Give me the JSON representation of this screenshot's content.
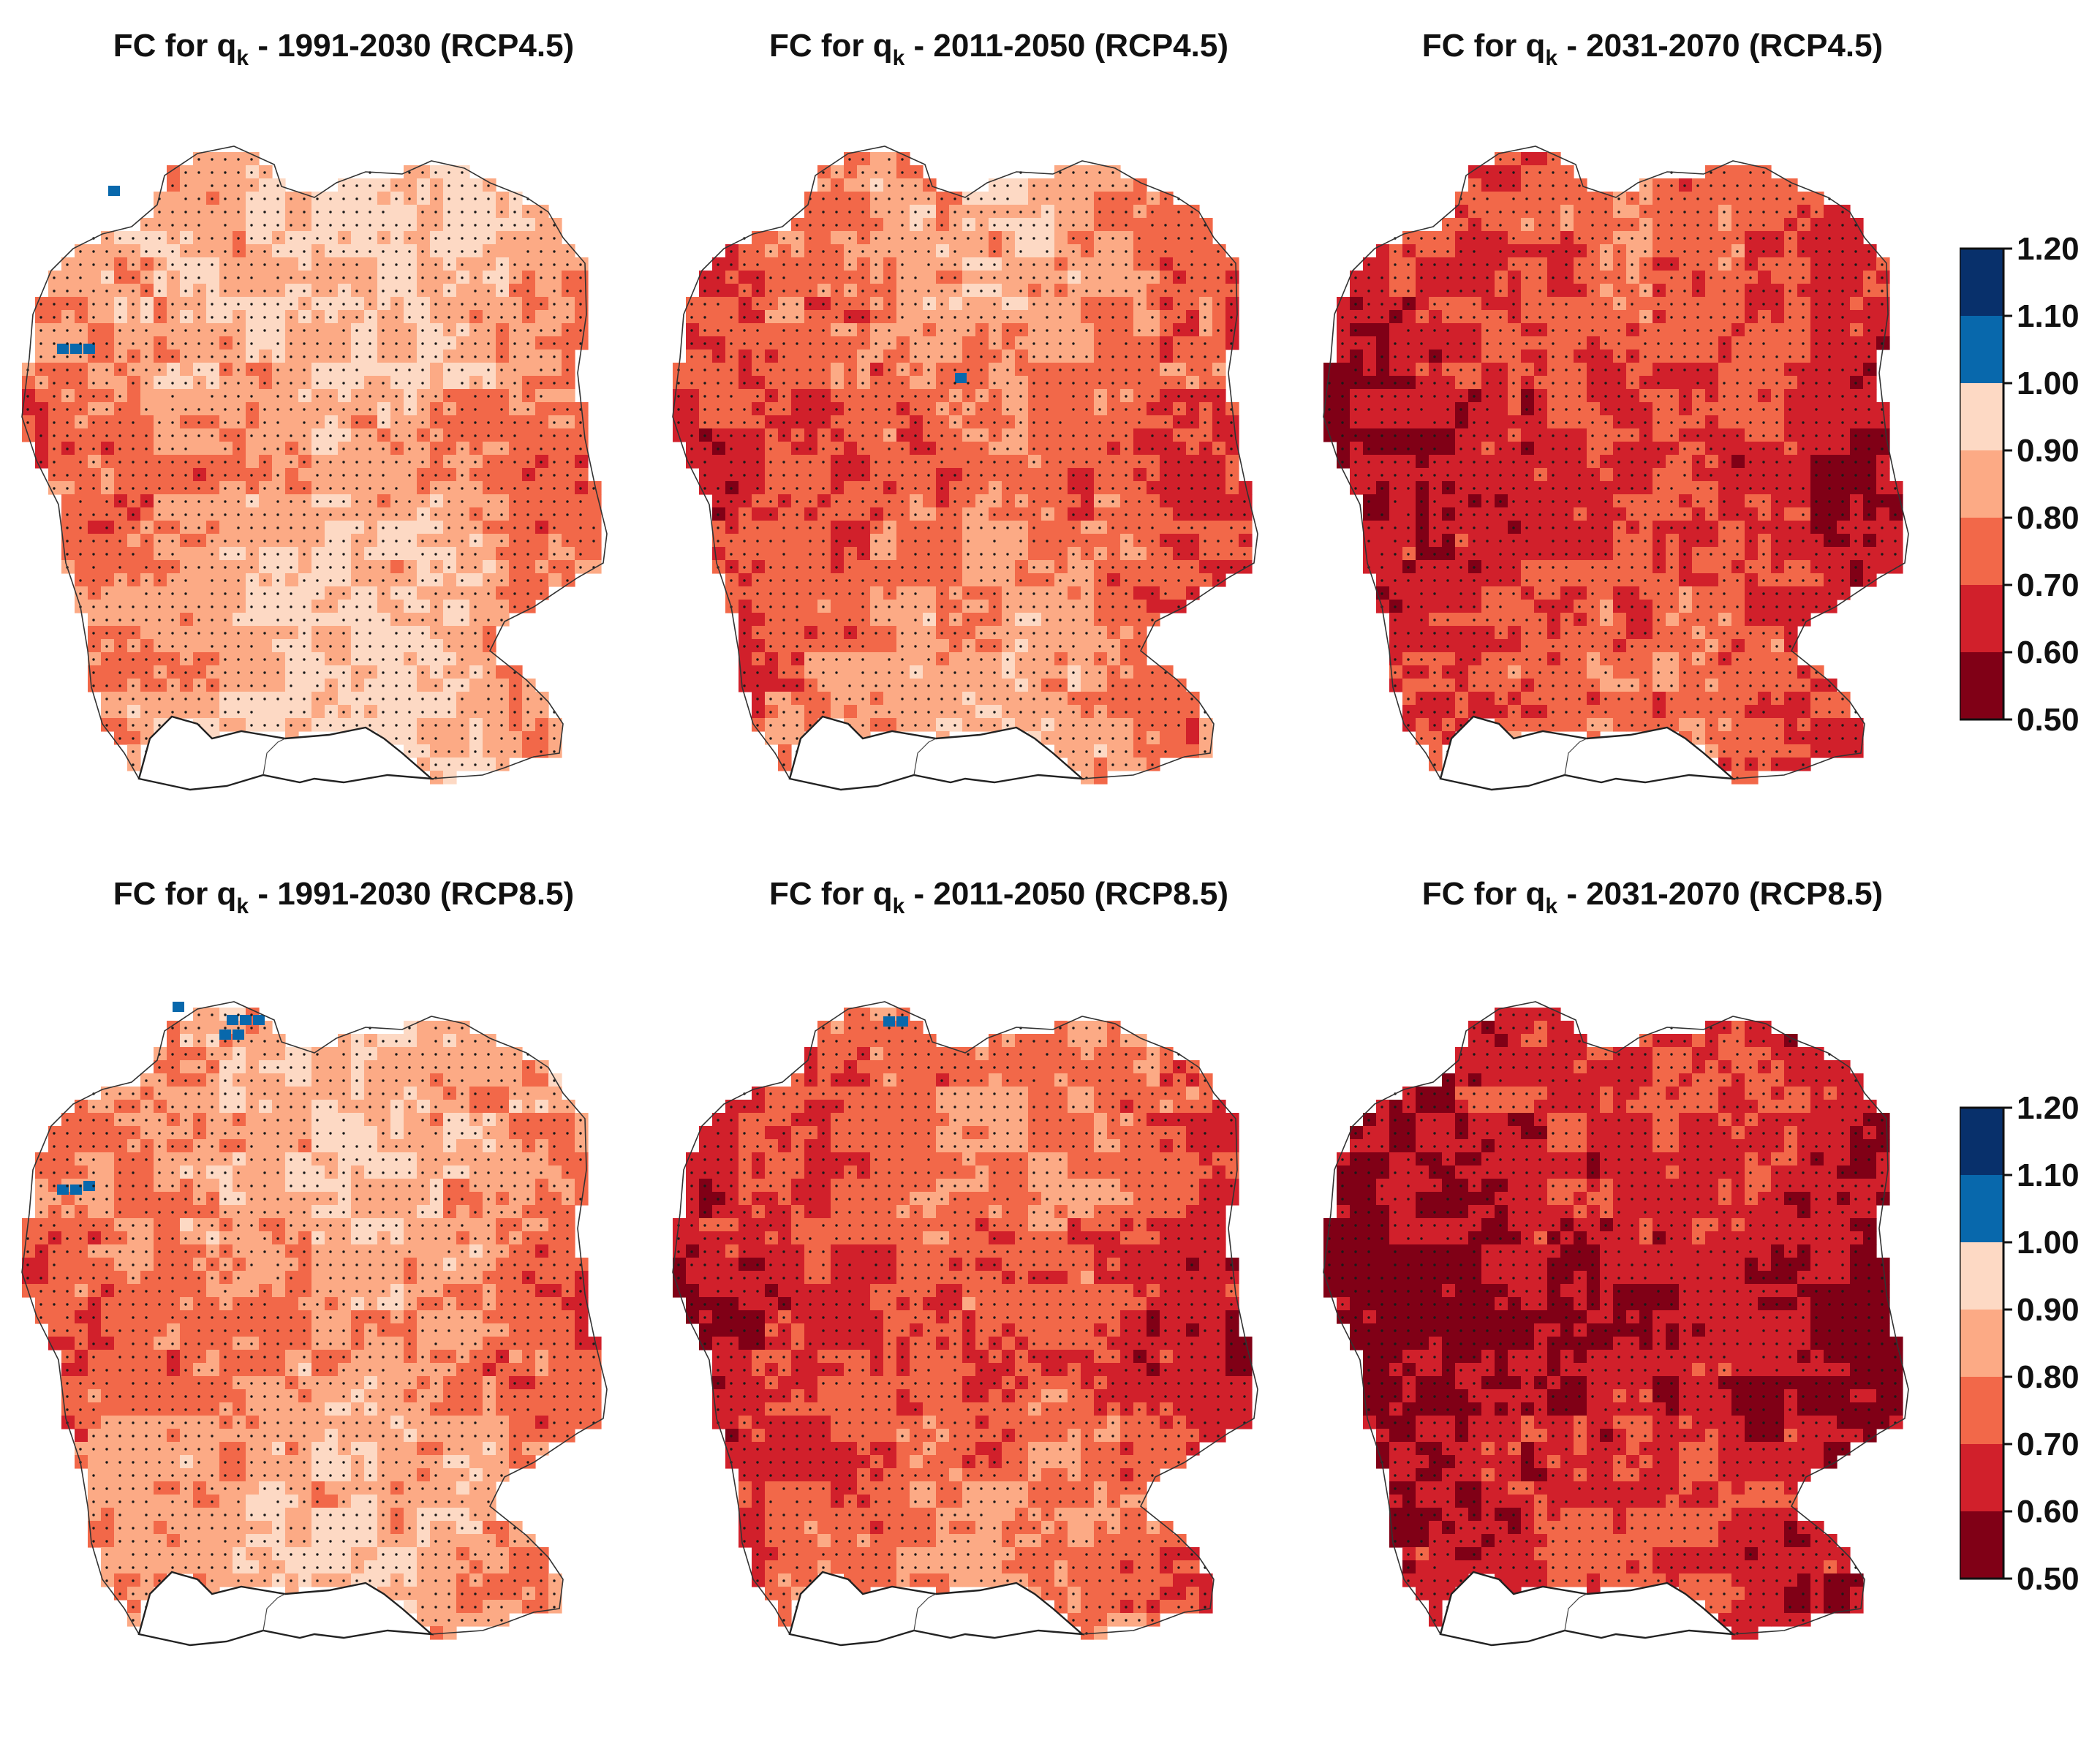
{
  "panels": [
    {
      "title_prefix": "FC for q",
      "title_sub": "k",
      "title_suffix": " - 1991-2030 (RCP4.5)",
      "scenario": "RCP4.5",
      "period": "1991-2030"
    },
    {
      "title_prefix": "FC for q",
      "title_sub": "k",
      "title_suffix": " - 2011-2050 (RCP4.5)",
      "scenario": "RCP4.5",
      "period": "2011-2050"
    },
    {
      "title_prefix": "FC for q",
      "title_sub": "k",
      "title_suffix": " - 2031-2070 (RCP4.5)",
      "scenario": "RCP4.5",
      "period": "2031-2070"
    },
    {
      "title_prefix": "FC for q",
      "title_sub": "k",
      "title_suffix": " - 1991-2030 (RCP8.5)",
      "scenario": "RCP8.5",
      "period": "1991-2030"
    },
    {
      "title_prefix": "FC for q",
      "title_sub": "k",
      "title_suffix": " - 2011-2050 (RCP8.5)",
      "scenario": "RCP8.5",
      "period": "2011-2050"
    },
    {
      "title_prefix": "FC for q",
      "title_sub": "k",
      "title_suffix": " - 2031-2070 (RCP8.5)",
      "scenario": "RCP8.5",
      "period": "2031-2070"
    }
  ],
  "colorbar": {
    "ticks": [
      "1.20",
      "1.10",
      "1.00",
      "0.90",
      "0.80",
      "0.70",
      "0.60",
      "0.50"
    ],
    "colors": [
      "#08306b",
      "#0868ac",
      "#fdd9c4",
      "#fcaa85",
      "#f26849",
      "#d1202b",
      "#800016"
    ]
  }
}
